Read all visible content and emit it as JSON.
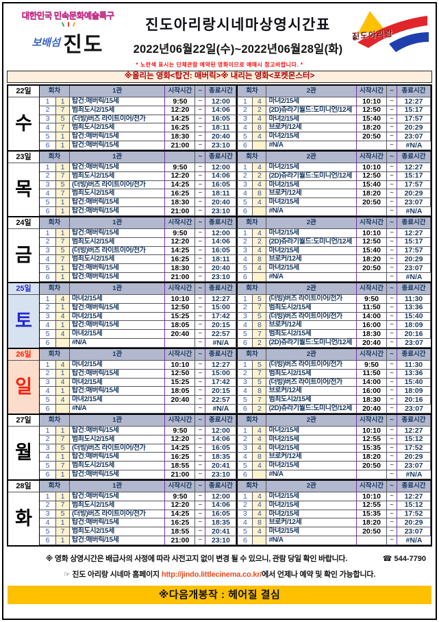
{
  "header": {
    "badge_line": "대한민국 민속문화예술특구",
    "badge_island": "보배섬",
    "badge_jindo": "진도",
    "logo_text": "진도아리랑",
    "title": "진도아리랑시네마상영시간표",
    "date_range": "2022년06월22일(수)~2022년06월28일(화)",
    "yellow_notice": "* 노란색 표시는 단체관람 예약된 영화이므로 예매시 참고바랍니다. *",
    "change_banner": "※올리는 영화<탑건: 매버릭>※ 내리는 영화<포켓몬스터>"
  },
  "table": {
    "col_headers": {
      "round": "회차",
      "screen1": "1관",
      "screen2": "2관",
      "start": "시작시간",
      "tilde": "~",
      "end": "종료시간"
    },
    "days": [
      {
        "date": "22일",
        "day": "수",
        "type": "weekday",
        "start_header1": "시작시간",
        "screen1": [
          {
            "no": "1",
            "code": "1",
            "title": "탑건:매버릭/15세",
            "start": "9:50",
            "end": "12:00"
          },
          {
            "no": "2",
            "code": "7",
            "title": "범죄도시2/15세",
            "start": "12:20",
            "end": "14:06"
          },
          {
            "no": "3",
            "code": "5",
            "title": "(더빙)버즈 라이트이어/전가",
            "start": "14:25",
            "end": "16:05"
          },
          {
            "no": "4",
            "code": "7",
            "title": "범죄도시2/15세",
            "start": "16:25",
            "end": "18:11"
          },
          {
            "no": "5",
            "code": "1",
            "title": "탑건:매버릭/15세",
            "start": "18:30",
            "end": "20:40"
          },
          {
            "no": "6",
            "code": "1",
            "title": "탑건:매버릭/15세",
            "start": "21:00",
            "end": "23:10"
          }
        ],
        "screen2": [
          {
            "no": "1",
            "code": "4",
            "title": "마녀2/15세",
            "start": "10:10",
            "end": "12:27"
          },
          {
            "no": "2",
            "code": "2",
            "title": "(2D)쥬라기월드:도미니언/12세",
            "start": "12:50",
            "end": "15:17"
          },
          {
            "no": "3",
            "code": "4",
            "title": "마녀2/15세",
            "start": "15:40",
            "end": "17:57"
          },
          {
            "no": "4",
            "code": "8",
            "title": "브로커/12세",
            "start": "18:20",
            "end": "20:29"
          },
          {
            "no": "5",
            "code": "4",
            "title": "마녀2/15세",
            "start": "20:50",
            "end": "23:07"
          },
          {
            "no": "6",
            "code": "",
            "title": "#N/A",
            "start": "",
            "end": "#N/A"
          }
        ]
      },
      {
        "date": "23일",
        "day": "목",
        "type": "weekday",
        "start_header1": "",
        "screen1": [
          {
            "no": "1",
            "code": "1",
            "title": "탑건:매버릭/15세",
            "start": "9:50",
            "end": "12:00"
          },
          {
            "no": "2",
            "code": "7",
            "title": "범죄도시2/15세",
            "start": "12:20",
            "end": "14:06"
          },
          {
            "no": "3",
            "code": "5",
            "title": "(더빙)버즈 라이트이어/전가",
            "start": "14:25",
            "end": "16:05"
          },
          {
            "no": "4",
            "code": "7",
            "title": "범죄도시2/15세",
            "start": "16:25",
            "end": "18:11"
          },
          {
            "no": "5",
            "code": "1",
            "title": "탑건:매버릭/15세",
            "start": "18:30",
            "end": "20:40"
          },
          {
            "no": "6",
            "code": "1",
            "title": "탑건:매버릭/15세",
            "start": "21:00",
            "end": "23:10"
          }
        ],
        "screen2": [
          {
            "no": "1",
            "code": "4",
            "title": "마녀2/15세",
            "start": "10:10",
            "end": "12:27"
          },
          {
            "no": "2",
            "code": "2",
            "title": "(2D)쥬라기월드:도미니언/12세",
            "start": "12:50",
            "end": "15:17"
          },
          {
            "no": "3",
            "code": "4",
            "title": "마녀2/15세",
            "start": "15:40",
            "end": "17:57"
          },
          {
            "no": "4",
            "code": "8",
            "title": "브로커/12세",
            "start": "18:20",
            "end": "20:29"
          },
          {
            "no": "5",
            "code": "4",
            "title": "마녀2/15세",
            "start": "20:50",
            "end": "23:07"
          },
          {
            "no": "6",
            "code": "",
            "title": "#N/A",
            "start": "",
            "end": "#N/A"
          }
        ]
      },
      {
        "date": "24일",
        "day": "금",
        "type": "weekday",
        "start_header1": "시작시간",
        "screen1": [
          {
            "no": "1",
            "code": "1",
            "title": "탑건:매버릭/15세",
            "start": "9:50",
            "end": "12:00"
          },
          {
            "no": "2",
            "code": "7",
            "title": "범죄도시2/15세",
            "start": "12:20",
            "end": "14:06"
          },
          {
            "no": "3",
            "code": "5",
            "title": "(더빙)버즈 라이트이어/전가",
            "start": "14:25",
            "end": "16:05"
          },
          {
            "no": "4",
            "code": "7",
            "title": "범죄도시2/15세",
            "start": "16:25",
            "end": "18:11"
          },
          {
            "no": "5",
            "code": "1",
            "title": "탑건:매버릭/15세",
            "start": "18:30",
            "end": "20:40"
          },
          {
            "no": "6",
            "code": "1",
            "title": "탑건:매버릭/15세",
            "start": "21:00",
            "end": "23:10"
          }
        ],
        "screen2": [
          {
            "no": "1",
            "code": "4",
            "title": "마녀2/15세",
            "start": "10:10",
            "end": "12:27"
          },
          {
            "no": "2",
            "code": "2",
            "title": "(2D)쥬라기월드:도미니언/12세",
            "start": "12:50",
            "end": "15:17"
          },
          {
            "no": "3",
            "code": "4",
            "title": "마녀2/15세",
            "start": "15:40",
            "end": "17:57"
          },
          {
            "no": "4",
            "code": "8",
            "title": "브로커/12세",
            "start": "18:20",
            "end": "20:29"
          },
          {
            "no": "5",
            "code": "4",
            "title": "마녀2/15세",
            "start": "20:50",
            "end": "23:07"
          },
          {
            "no": "6",
            "code": "",
            "title": "#N/A",
            "start": "",
            "end": "#N/A"
          }
        ]
      },
      {
        "date": "25일",
        "day": "토",
        "type": "sat",
        "start_header1": "시작시간",
        "screen1": [
          {
            "no": "1",
            "code": "4",
            "title": "마녀2/15세",
            "start": "10:10",
            "end": "12:27"
          },
          {
            "no": "2",
            "code": "1",
            "title": "탑건:매버릭/15세",
            "start": "12:50",
            "end": "15:00"
          },
          {
            "no": "3",
            "code": "4",
            "title": "마녀2/15세",
            "start": "15:25",
            "end": "17:42"
          },
          {
            "no": "4",
            "code": "1",
            "title": "탑건:매버릭/15세",
            "start": "18:05",
            "end": "20:15"
          },
          {
            "no": "5",
            "code": "4",
            "title": "마녀2/15세",
            "start": "20:40",
            "end": "22:57"
          },
          {
            "no": "6",
            "code": "",
            "title": "#N/A",
            "start": "",
            "end": "#N/A"
          }
        ],
        "screen2": [
          {
            "no": "1",
            "code": "5",
            "title": "(더빙)버즈 라이트이어/전가",
            "start": "9:50",
            "end": "11:30"
          },
          {
            "no": "2",
            "code": "7",
            "title": "범죄도시2/15세",
            "start": "11:50",
            "end": "13:36"
          },
          {
            "no": "3",
            "code": "5",
            "title": "(더빙)버즈 라이트이어/전가",
            "start": "14:00",
            "end": "15:40"
          },
          {
            "no": "4",
            "code": "8",
            "title": "브로커/12세",
            "start": "16:00",
            "end": "18:09"
          },
          {
            "no": "5",
            "code": "7",
            "title": "범죄도시2/15세",
            "start": "18:30",
            "end": "20:16"
          },
          {
            "no": "6",
            "code": "2",
            "title": "(2D)쥬라기월드:도미니언/12세",
            "start": "20:40",
            "end": "23:07"
          }
        ]
      },
      {
        "date": "26일",
        "day": "일",
        "type": "sun",
        "start_header1": "시작시간",
        "screen1": [
          {
            "no": "1",
            "code": "4",
            "title": "마녀2/15세",
            "start": "10:10",
            "end": "12:27"
          },
          {
            "no": "2",
            "code": "1",
            "title": "탑건:매버릭/15세",
            "start": "12:50",
            "end": "15:00"
          },
          {
            "no": "3",
            "code": "4",
            "title": "마녀2/15세",
            "start": "15:25",
            "end": "17:42"
          },
          {
            "no": "4",
            "code": "1",
            "title": "탑건:매버릭/15세",
            "start": "18:05",
            "end": "20:15"
          },
          {
            "no": "5",
            "code": "4",
            "title": "마녀2/15세",
            "start": "20:40",
            "end": "22:57"
          },
          {
            "no": "6",
            "code": "",
            "title": "#N/A",
            "start": "",
            "end": "#N/A"
          }
        ],
        "screen2": [
          {
            "no": "1",
            "code": "5",
            "title": "(더빙)버즈 라이트이어/전가",
            "start": "9:50",
            "end": "11:30"
          },
          {
            "no": "2",
            "code": "7",
            "title": "범죄도시2/15세",
            "start": "11:50",
            "end": "13:36"
          },
          {
            "no": "3",
            "code": "5",
            "title": "(더빙)버즈 라이트이어/전가",
            "start": "14:00",
            "end": "15:40"
          },
          {
            "no": "4",
            "code": "8",
            "title": "브로커/12세",
            "start": "16:00",
            "end": "18:09"
          },
          {
            "no": "5",
            "code": "7",
            "title": "범죄도시2/15세",
            "start": "18:30",
            "end": "20:16"
          },
          {
            "no": "6",
            "code": "2",
            "title": "(2D)쥬라기월드:도미니언/12세",
            "start": "20:40",
            "end": "23:07"
          }
        ]
      },
      {
        "date": "27일",
        "day": "월",
        "type": "weekday",
        "start_header1": "시작시간",
        "screen1": [
          {
            "no": "1",
            "code": "1",
            "title": "탑건:매버릭/15세",
            "start": "9:50",
            "end": "12:00"
          },
          {
            "no": "2",
            "code": "7",
            "title": "범죄도시2/15세",
            "start": "12:20",
            "end": "14:06"
          },
          {
            "no": "3",
            "code": "5",
            "title": "(더빙)버즈 라이트이어/전가",
            "start": "14:25",
            "end": "16:05"
          },
          {
            "no": "4",
            "code": "1",
            "title": "탑건:매버릭/15세",
            "start": "16:25",
            "end": "18:35"
          },
          {
            "no": "5",
            "code": "7",
            "title": "범죄도시2/15세",
            "start": "18:55",
            "end": "20:41"
          },
          {
            "no": "6",
            "code": "1",
            "title": "탑건:매버릭/15세",
            "start": "21:00",
            "end": "23:10"
          }
        ],
        "screen2": [
          {
            "no": "1",
            "code": "4",
            "title": "마녀2/15세",
            "start": "10:10",
            "end": "12:27"
          },
          {
            "no": "2",
            "code": "4",
            "title": "마녀2/15세",
            "start": "12:55",
            "end": "15:12"
          },
          {
            "no": "3",
            "code": "4",
            "title": "마녀2/15세",
            "start": "15:35",
            "end": "17:52"
          },
          {
            "no": "4",
            "code": "8",
            "title": "브로커/12세",
            "start": "18:20",
            "end": "20:29"
          },
          {
            "no": "5",
            "code": "4",
            "title": "마녀2/15세",
            "start": "20:50",
            "end": "23:07"
          },
          {
            "no": "6",
            "code": "",
            "title": "#N/A",
            "start": "",
            "end": "#N/A"
          }
        ]
      },
      {
        "date": "28일",
        "day": "화",
        "type": "weekday",
        "start_header1": "시작시간",
        "screen1": [
          {
            "no": "1",
            "code": "1",
            "title": "탑건:매버릭/15세",
            "start": "9:50",
            "end": "12:00"
          },
          {
            "no": "2",
            "code": "7",
            "title": "범죄도시2/15세",
            "start": "12:20",
            "end": "14:06"
          },
          {
            "no": "3",
            "code": "5",
            "title": "(더빙)버즈 라이트이어/전가",
            "start": "14:25",
            "end": "16:05"
          },
          {
            "no": "4",
            "code": "1",
            "title": "탑건:매버릭/15세",
            "start": "16:25",
            "end": "18:35"
          },
          {
            "no": "5",
            "code": "7",
            "title": "범죄도시2/15세",
            "start": "18:55",
            "end": "20:41"
          },
          {
            "no": "6",
            "code": "1",
            "title": "탑건:매버릭/15세",
            "start": "21:00",
            "end": "23:10"
          }
        ],
        "screen2": [
          {
            "no": "1",
            "code": "4",
            "title": "마녀2/15세",
            "start": "10:10",
            "end": "12:27"
          },
          {
            "no": "2",
            "code": "4",
            "title": "마녀2/15세",
            "start": "12:55",
            "end": "15:12"
          },
          {
            "no": "3",
            "code": "4",
            "title": "마녀2/15세",
            "start": "15:35",
            "end": "17:52"
          },
          {
            "no": "4",
            "code": "8",
            "title": "브로커/12세",
            "start": "18:20",
            "end": "20:29"
          },
          {
            "no": "5",
            "code": "4",
            "title": "마녀2/15세",
            "start": "20:50",
            "end": "23:07"
          },
          {
            "no": "6",
            "code": "",
            "title": "#N/A",
            "start": "",
            "end": "#N/A"
          }
        ]
      }
    ]
  },
  "footer": {
    "notice": "※ 영화 상영시간은 배급사의 사정에 따라 사전고지 없이 변경 될 수 있으니, 관람 당일 확인 바랍니다.",
    "phone": "☎ 544-7790",
    "homepage_prefix": "☞ 진도 아리랑 시네마 홈페이지 ",
    "homepage_url": "http://jindo.littlecinema.co.kr/",
    "homepage_suffix": "에서 언제나 예약 및 확인 가능합니다.",
    "next_release": "※다음개봉작 : 헤어질 결심"
  },
  "colors": {
    "accent_yellow": "#ffc000",
    "table_header_fill": "#b2b8cd",
    "group_reservation_fill": "#fdf3cf",
    "saturday_blue": "#2028cf",
    "sunday_red": "#fb1d09",
    "banner_text_red": "#b00000"
  }
}
